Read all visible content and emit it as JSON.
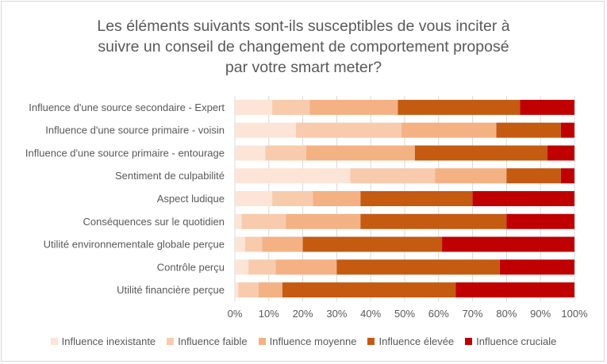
{
  "chart_data": {
    "type": "bar",
    "orientation": "horizontal",
    "stacked": "100%",
    "title_lines": [
      "Les éléments suivants sont-ils susceptibles de vous inciter à",
      "suivre un conseil de changement de comportement proposé",
      "par votre smart meter?"
    ],
    "categories": [
      "Influence d'une source secondaire - Expert",
      "Influence d'une source primaire - voisin",
      "Influence d'une source primaire - entourage",
      "Sentiment de culpabilité",
      "Aspect ludique",
      "Conséquences sur le quotidien",
      "Utilité environnementale globale perçue",
      "Contrôle perçu",
      "Utilité financière perçue"
    ],
    "series": [
      {
        "name": "Influence inexistante",
        "color": "#fce4d6",
        "values": [
          11,
          18,
          9,
          34,
          11,
          2,
          3,
          4,
          1
        ]
      },
      {
        "name": "Influence faible",
        "color": "#f8cbad",
        "values": [
          11,
          31,
          12,
          25,
          12,
          13,
          5,
          8,
          6
        ]
      },
      {
        "name": "Influence moyenne",
        "color": "#f4b183",
        "values": [
          26,
          28,
          32,
          21,
          14,
          22,
          12,
          18,
          7
        ]
      },
      {
        "name": "Influence élevée",
        "color": "#c55a11",
        "values": [
          36,
          19,
          39,
          16,
          33,
          43,
          41,
          48,
          51
        ]
      },
      {
        "name": "Influence cruciale",
        "color": "#c00000",
        "values": [
          16,
          4,
          8,
          4,
          30,
          20,
          39,
          22,
          35
        ]
      }
    ],
    "x_ticks": [
      "0%",
      "10%",
      "20%",
      "30%",
      "40%",
      "50%",
      "60%",
      "70%",
      "80%",
      "90%",
      "100%"
    ],
    "xlim": [
      0,
      100
    ],
    "grid": true,
    "legend_position": "bottom"
  }
}
